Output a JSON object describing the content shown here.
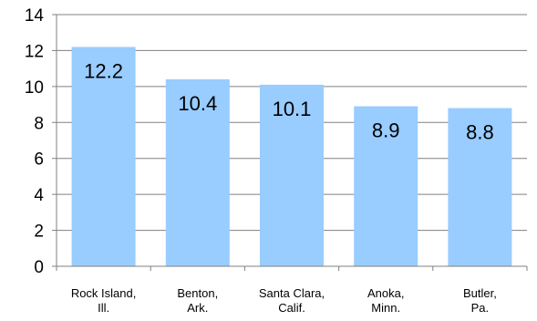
{
  "chart_data": {
    "type": "bar",
    "categories": [
      [
        "Rock Island,",
        "Ill."
      ],
      [
        "Benton,",
        "Ark."
      ],
      [
        "Santa Clara,",
        "Calif."
      ],
      [
        "Anoka,",
        "Minn."
      ],
      [
        "Butler,",
        "Pa."
      ]
    ],
    "values": [
      12.2,
      10.4,
      10.1,
      8.9,
      8.8
    ],
    "value_labels": [
      "12.2",
      "10.4",
      "10.1",
      "8.9",
      "8.8"
    ],
    "ylim": [
      0,
      14
    ],
    "yticks": [
      0,
      2,
      4,
      6,
      8,
      10,
      12,
      14
    ],
    "grid": true,
    "bar_color": "#99ccff",
    "grid_color": "#808080",
    "title": "",
    "xlabel": "",
    "ylabel": ""
  }
}
